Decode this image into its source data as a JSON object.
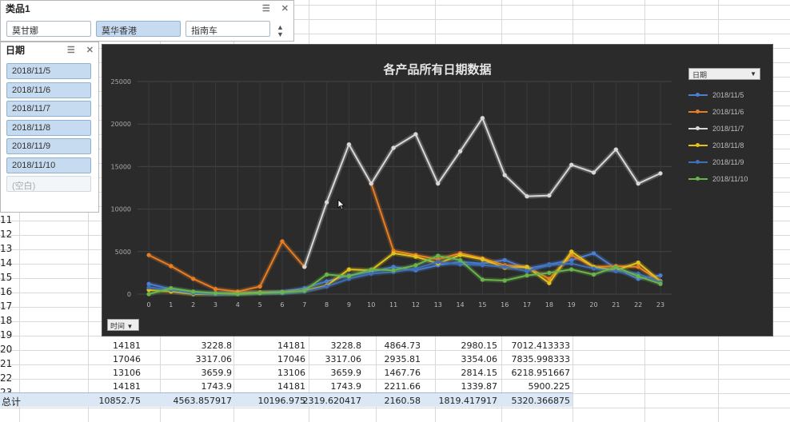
{
  "product_slicer": {
    "title": "类品1",
    "items": [
      {
        "label": "莫甘娜",
        "selected": false
      },
      {
        "label": "莫华香港",
        "selected": true
      },
      {
        "label": "指南车",
        "selected": false
      }
    ]
  },
  "date_slicer": {
    "title": "日期",
    "items": [
      {
        "label": "2018/11/5",
        "selected": true
      },
      {
        "label": "2018/11/6",
        "selected": true
      },
      {
        "label": "2018/11/7",
        "selected": true
      },
      {
        "label": "2018/11/8",
        "selected": true
      },
      {
        "label": "2018/11/9",
        "selected": true
      },
      {
        "label": "2018/11/10",
        "selected": true
      },
      {
        "label": "(空白)",
        "selected": false
      }
    ]
  },
  "row_numbers": [
    "11",
    "12",
    "13",
    "14",
    "15",
    "16",
    "17",
    "18",
    "19",
    "20",
    "21",
    "22",
    "23"
  ],
  "table_rows": [
    [
      "14181",
      "3228.8",
      "14181",
      "3228.8",
      "4864.73",
      "2980.15",
      "7012.413333"
    ],
    [
      "17046",
      "3317.06",
      "17046",
      "3317.06",
      "2935.81",
      "3354.06",
      "7835.998333"
    ],
    [
      "13106",
      "3659.9",
      "13106",
      "3659.9",
      "1467.76",
      "2814.15",
      "6218.951667"
    ],
    [
      "14181",
      "1743.9",
      "14181",
      "1743.9",
      "2211.66",
      "1339.87",
      "5900.225"
    ]
  ],
  "total_row": {
    "label": "总计",
    "values": [
      "10852.75",
      "4563.857917",
      "10196.975",
      "2319.620417",
      "2160.58",
      "1819.417917",
      "5320.366875"
    ]
  },
  "chart": {
    "legend_dropdown": "日期",
    "axis_dropdown": "时间"
  },
  "chart_data": {
    "type": "line",
    "title": "各产品所有日期数据",
    "x": [
      0,
      1,
      2,
      3,
      4,
      5,
      6,
      7,
      8,
      9,
      10,
      11,
      12,
      13,
      14,
      15,
      16,
      17,
      18,
      19,
      20,
      21,
      22,
      23
    ],
    "ylim": [
      0,
      25000
    ],
    "yticks": [
      0,
      5000,
      10000,
      15000,
      20000,
      25000
    ],
    "grid": true,
    "legend_position": "right",
    "series": [
      {
        "name": "2018/11/5",
        "color": "#4a7fd4",
        "values": [
          1200,
          600,
          200,
          100,
          100,
          200,
          300,
          700,
          1500,
          2200,
          2600,
          3200,
          2800,
          3400,
          3800,
          3600,
          4000,
          3000,
          3500,
          4000,
          4800,
          3000,
          1800,
          2200
        ]
      },
      {
        "name": "2018/11/6",
        "color": "#e87d22",
        "values": [
          4600,
          3300,
          1800,
          600,
          300,
          900,
          6200,
          3200,
          null,
          null,
          13000,
          5100,
          4600,
          4100,
          4800,
          4200,
          3400,
          3200,
          1800,
          4600,
          3200,
          3300,
          3200,
          1500
        ]
      },
      {
        "name": "2018/11/7",
        "color": "#d8d8d8",
        "values": [
          null,
          null,
          null,
          null,
          null,
          null,
          null,
          3200,
          10800,
          17600,
          13000,
          17200,
          18800,
          13000,
          16800,
          20700,
          14000,
          11500,
          11600,
          15200,
          14300,
          17000,
          13000,
          14200
        ]
      },
      {
        "name": "2018/11/8",
        "color": "#e4c21c",
        "values": [
          500,
          300,
          0,
          0,
          100,
          200,
          200,
          400,
          1000,
          2900,
          2800,
          4800,
          4400,
          3600,
          4600,
          4100,
          3100,
          3200,
          1300,
          5000,
          3200,
          2800,
          3700,
          1500
        ]
      },
      {
        "name": "2018/11/9",
        "color": "#3f6fb8",
        "values": [
          800,
          500,
          100,
          0,
          0,
          100,
          100,
          300,
          900,
          1800,
          2400,
          2600,
          3000,
          3800,
          3500,
          3400,
          3200,
          2700,
          3400,
          3600,
          3000,
          2700,
          2400,
          1400
        ]
      },
      {
        "name": "2018/11/10",
        "color": "#69b54a",
        "values": [
          0,
          700,
          300,
          100,
          0,
          100,
          200,
          400,
          2300,
          2100,
          2900,
          2800,
          3400,
          4500,
          4000,
          1700,
          1600,
          2200,
          2500,
          2900,
          2300,
          3200,
          2100,
          1200
        ]
      }
    ]
  }
}
